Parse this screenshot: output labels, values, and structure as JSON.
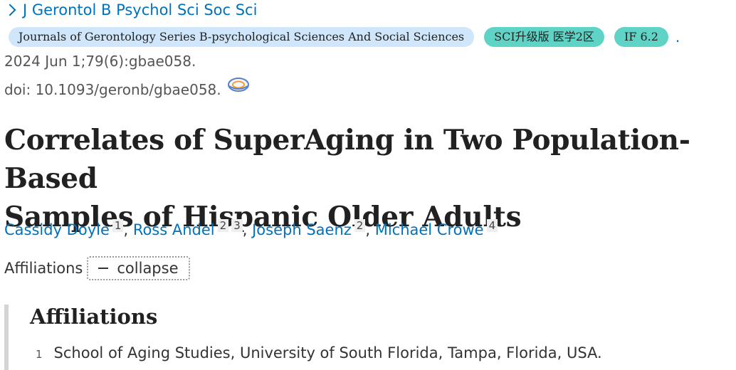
{
  "journal": {
    "link_label": "J Gerontol B Psychol Sci Soc Sci"
  },
  "badges": {
    "full_name": "Journals of Gerontology Series B-psychological Sciences And Social Sciences",
    "sci_rank": "SCI升级版 医学2区",
    "impact_factor": "IF 6.2",
    "trailing_dot": "."
  },
  "citation": {
    "date_volume": "2024 Jun 1;79(6):gbae058.",
    "doi": "doi: 10.1093/geronb/gbae058."
  },
  "article": {
    "title_line1": "Correlates of SuperAging in Two Population-Based",
    "title_line2": "Samples of Hispanic Older Adults"
  },
  "authors": [
    {
      "name": "Cassidy Doyle",
      "affils": [
        "1"
      ]
    },
    {
      "name": "Ross Andel",
      "affils": [
        "2",
        "3"
      ]
    },
    {
      "name": "Joseph Saenz",
      "affils": [
        "2"
      ]
    },
    {
      "name": "Michael Crowe",
      "affils": [
        "4"
      ]
    }
  ],
  "separators": {
    "comma": ","
  },
  "affiliations_toggle": {
    "label": "Affiliations",
    "button_label": "collapse"
  },
  "affiliations_panel": {
    "heading": "Affiliations",
    "items": [
      {
        "num": "1",
        "text": "School of Aging Studies, University of South Florida, Tampa, Florida, USA."
      }
    ]
  },
  "colors": {
    "link": "#0071bc",
    "badge_blue": "#cfe6fb",
    "badge_teal": "#5fd3c6",
    "panel_border": "#d4d4d4"
  },
  "icons": {
    "journal_chevron": "chevron-right-icon",
    "doi_icon": "doi-globe-icon",
    "collapse_icon": "minus-icon"
  }
}
